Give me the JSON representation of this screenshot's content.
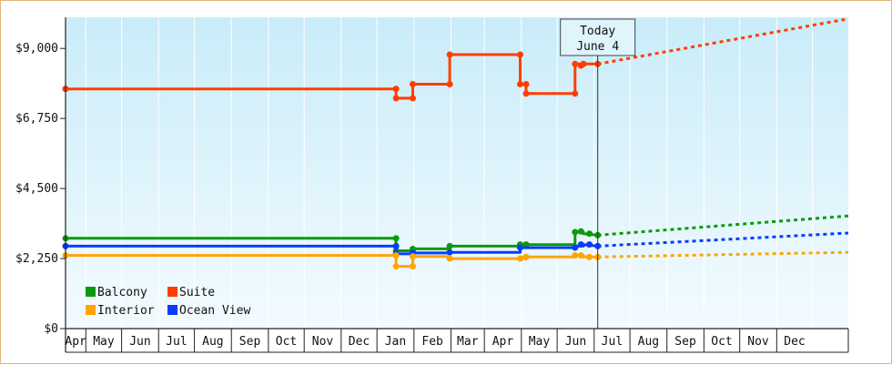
{
  "chart_data": {
    "type": "line",
    "title": "",
    "xlabel": "",
    "ylabel": "",
    "ylim": [
      0,
      10000
    ],
    "y_ticks": [
      0,
      2250,
      4500,
      6750,
      9000
    ],
    "y_tick_labels": [
      "$0",
      "$2,250",
      "$4,500",
      "$6,750",
      "$9,000"
    ],
    "x_axis": {
      "start": "2025-03-15",
      "end": "2026-12-31",
      "month_labels": [
        "Apr",
        "May",
        "Jun",
        "Jul",
        "Aug",
        "Sep",
        "Oct",
        "Nov",
        "Dec",
        "Jan",
        "Feb",
        "Mar",
        "Apr",
        "May",
        "Jun",
        "Jul",
        "Aug",
        "Sep",
        "Oct",
        "Nov",
        "Dec"
      ]
    },
    "grid": "vertical month dividers",
    "background_gradient": [
      "#c9ecf9",
      "#f3fbfe"
    ],
    "today": {
      "date": "2026-06-04",
      "line1": "Today",
      "line2": "June 4"
    },
    "legend": {
      "placement": "bottom-left",
      "entries": [
        {
          "name": "Balcony",
          "color": "#0b9a0b"
        },
        {
          "name": "Suite",
          "color": "#ff3d00"
        },
        {
          "name": "Interior",
          "color": "#ffa500"
        },
        {
          "name": "Ocean View",
          "color": "#0a3cff"
        }
      ]
    },
    "series": [
      {
        "name": "Suite",
        "color": "#ff3d00",
        "points": [
          [
            "2025-03-15",
            7700
          ],
          [
            "2025-12-17",
            7700
          ],
          [
            "2025-12-17",
            7400
          ],
          [
            "2025-12-31",
            7400
          ],
          [
            "2025-12-31",
            7850
          ],
          [
            "2026-01-31",
            7850
          ],
          [
            "2026-01-31",
            8800
          ],
          [
            "2026-03-31",
            8800
          ],
          [
            "2026-03-31",
            7850
          ],
          [
            "2026-04-05",
            7850
          ],
          [
            "2026-04-05",
            7550
          ],
          [
            "2026-05-16",
            7550
          ],
          [
            "2026-05-16",
            8500
          ],
          [
            "2026-05-21",
            8500
          ],
          [
            "2026-05-21",
            8450
          ],
          [
            "2026-05-23",
            8450
          ],
          [
            "2026-05-23",
            8500
          ],
          [
            "2026-06-04",
            8500
          ]
        ],
        "dots": [
          [
            "2025-03-15",
            7700
          ],
          [
            "2025-12-17",
            7700
          ],
          [
            "2025-12-17",
            7400
          ],
          [
            "2025-12-31",
            7400
          ],
          [
            "2025-12-31",
            7850
          ],
          [
            "2026-01-31",
            7850
          ],
          [
            "2026-01-31",
            8800
          ],
          [
            "2026-03-31",
            8800
          ],
          [
            "2026-03-31",
            7850
          ],
          [
            "2026-04-05",
            7850
          ],
          [
            "2026-04-05",
            7550
          ],
          [
            "2026-05-16",
            7550
          ],
          [
            "2026-05-16",
            8500
          ],
          [
            "2026-05-21",
            8450
          ],
          [
            "2026-05-23",
            8500
          ],
          [
            "2026-06-04",
            8500
          ]
        ],
        "forecast": [
          [
            "2026-06-04",
            8500
          ],
          [
            "2026-12-31",
            9950
          ]
        ]
      },
      {
        "name": "Balcony",
        "color": "#0b9a0b",
        "points": [
          [
            "2025-03-15",
            2900
          ],
          [
            "2025-12-17",
            2900
          ],
          [
            "2025-12-17",
            2500
          ],
          [
            "2025-12-31",
            2500
          ],
          [
            "2025-12-31",
            2560
          ],
          [
            "2026-01-31",
            2560
          ],
          [
            "2026-01-31",
            2650
          ],
          [
            "2026-03-31",
            2650
          ],
          [
            "2026-03-31",
            2700
          ],
          [
            "2026-05-16",
            2700
          ],
          [
            "2026-05-16",
            3100
          ],
          [
            "2026-05-23",
            3100
          ],
          [
            "2026-05-23",
            3050
          ],
          [
            "2026-06-04",
            3000
          ]
        ],
        "dots": [
          [
            "2025-03-15",
            2900
          ],
          [
            "2025-12-17",
            2900
          ],
          [
            "2025-12-17",
            2500
          ],
          [
            "2025-12-31",
            2500
          ],
          [
            "2025-12-31",
            2560
          ],
          [
            "2026-01-31",
            2650
          ],
          [
            "2026-03-31",
            2700
          ],
          [
            "2026-04-05",
            2700
          ],
          [
            "2026-05-16",
            3100
          ],
          [
            "2026-05-21",
            3120
          ],
          [
            "2026-05-28",
            3050
          ],
          [
            "2026-06-04",
            3000
          ]
        ],
        "forecast": [
          [
            "2026-06-04",
            3000
          ],
          [
            "2026-12-31",
            3620
          ]
        ]
      },
      {
        "name": "Ocean View",
        "color": "#0a3cff",
        "points": [
          [
            "2025-03-15",
            2650
          ],
          [
            "2025-12-17",
            2650
          ],
          [
            "2025-12-17",
            2400
          ],
          [
            "2025-12-31",
            2400
          ],
          [
            "2025-12-31",
            2430
          ],
          [
            "2026-01-31",
            2430
          ],
          [
            "2026-01-31",
            2450
          ],
          [
            "2026-03-31",
            2450
          ],
          [
            "2026-03-31",
            2600
          ],
          [
            "2026-05-16",
            2600
          ],
          [
            "2026-05-16",
            2650
          ],
          [
            "2026-05-23",
            2650
          ],
          [
            "2026-05-23",
            2700
          ],
          [
            "2026-06-04",
            2650
          ]
        ],
        "dots": [
          [
            "2025-03-15",
            2650
          ],
          [
            "2025-12-17",
            2650
          ],
          [
            "2025-12-17",
            2400
          ],
          [
            "2025-12-31",
            2430
          ],
          [
            "2026-01-31",
            2450
          ],
          [
            "2026-03-31",
            2600
          ],
          [
            "2026-05-16",
            2600
          ],
          [
            "2026-05-21",
            2700
          ],
          [
            "2026-05-28",
            2700
          ],
          [
            "2026-06-04",
            2650
          ]
        ],
        "forecast": [
          [
            "2026-06-04",
            2650
          ],
          [
            "2026-12-31",
            3070
          ]
        ]
      },
      {
        "name": "Interior",
        "color": "#ffa500",
        "points": [
          [
            "2025-03-15",
            2350
          ],
          [
            "2025-12-17",
            2350
          ],
          [
            "2025-12-17",
            2000
          ],
          [
            "2025-12-31",
            2000
          ],
          [
            "2025-12-31",
            2320
          ],
          [
            "2026-01-31",
            2320
          ],
          [
            "2026-01-31",
            2250
          ],
          [
            "2026-03-31",
            2250
          ],
          [
            "2026-03-31",
            2300
          ],
          [
            "2026-05-16",
            2300
          ],
          [
            "2026-05-16",
            2350
          ],
          [
            "2026-05-23",
            2350
          ],
          [
            "2026-05-23",
            2300
          ],
          [
            "2026-06-04",
            2300
          ]
        ],
        "dots": [
          [
            "2025-03-15",
            2350
          ],
          [
            "2025-12-17",
            2350
          ],
          [
            "2025-12-17",
            2000
          ],
          [
            "2025-12-31",
            2000
          ],
          [
            "2025-12-31",
            2320
          ],
          [
            "2026-01-31",
            2250
          ],
          [
            "2026-03-31",
            2250
          ],
          [
            "2026-04-05",
            2300
          ],
          [
            "2026-05-16",
            2350
          ],
          [
            "2026-05-21",
            2350
          ],
          [
            "2026-05-28",
            2300
          ],
          [
            "2026-06-04",
            2300
          ]
        ],
        "forecast": [
          [
            "2026-06-04",
            2300
          ],
          [
            "2026-12-31",
            2450
          ]
        ]
      }
    ]
  }
}
